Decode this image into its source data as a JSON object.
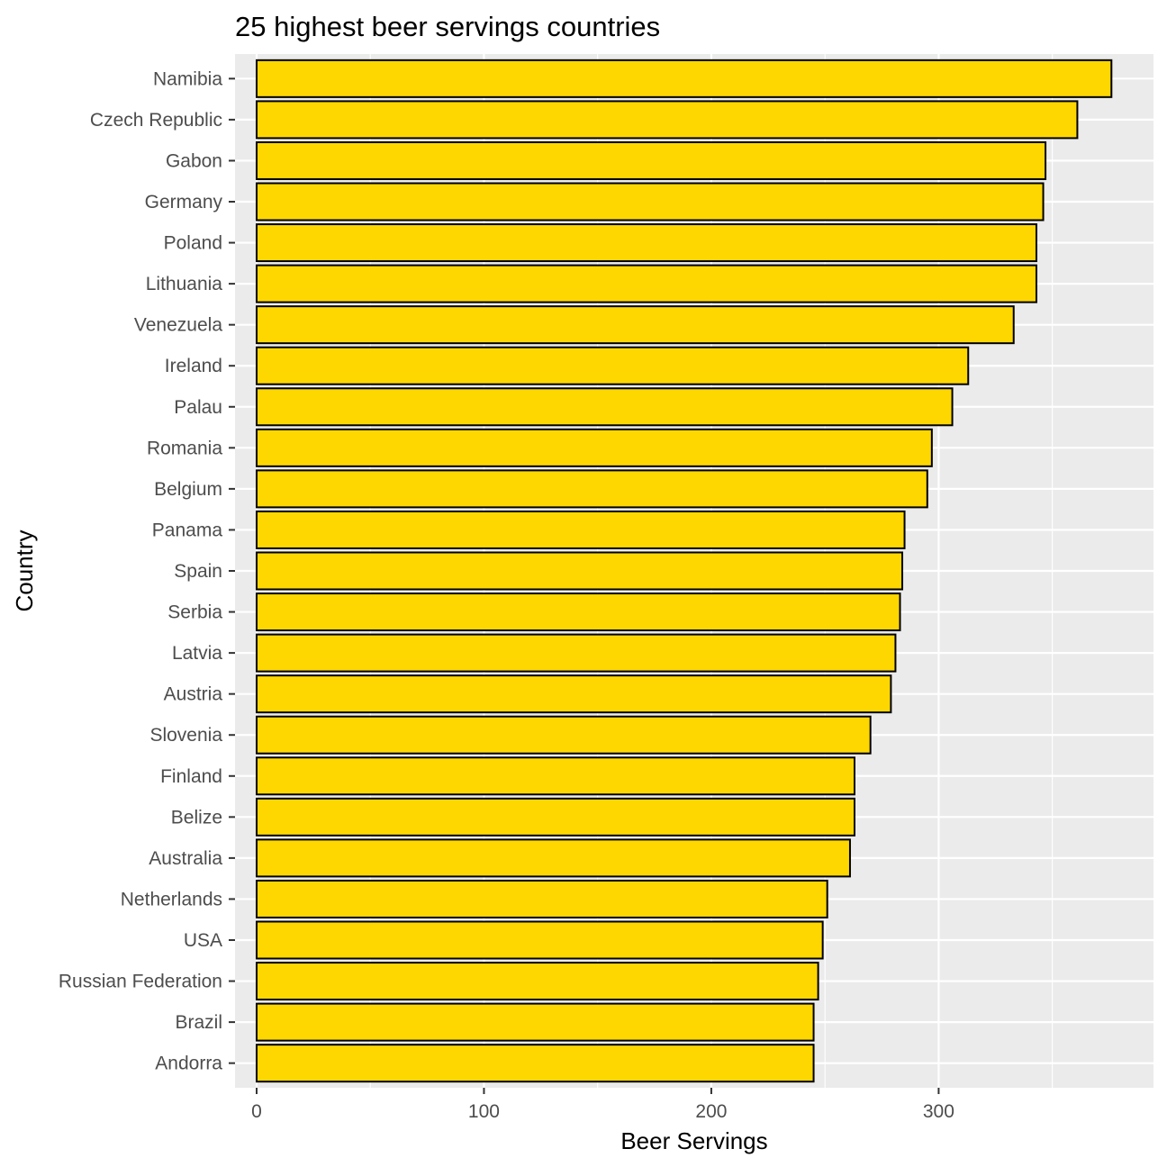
{
  "chart_data": {
    "type": "bar",
    "orientation": "horizontal",
    "title": "25 highest beer servings countries",
    "xlabel": "Beer Servings",
    "ylabel": "Country",
    "xlim": [
      -9.5,
      394.5
    ],
    "xticks": [
      0,
      100,
      200,
      300
    ],
    "grid": true,
    "bar_fill": "#FFD700",
    "bar_stroke": "#000000",
    "panel_background": "#EBEBEB",
    "categories": [
      "Namibia",
      "Czech Republic",
      "Gabon",
      "Germany",
      "Poland",
      "Lithuania",
      "Venezuela",
      "Ireland",
      "Palau",
      "Romania",
      "Belgium",
      "Panama",
      "Spain",
      "Serbia",
      "Latvia",
      "Austria",
      "Slovenia",
      "Finland",
      "Belize",
      "Australia",
      "Netherlands",
      "USA",
      "Russian Federation",
      "Brazil",
      "Andorra"
    ],
    "values": [
      376,
      361,
      347,
      346,
      343,
      343,
      333,
      313,
      306,
      297,
      295,
      285,
      284,
      283,
      281,
      279,
      270,
      263,
      263,
      261,
      251,
      249,
      247,
      245,
      245
    ]
  }
}
